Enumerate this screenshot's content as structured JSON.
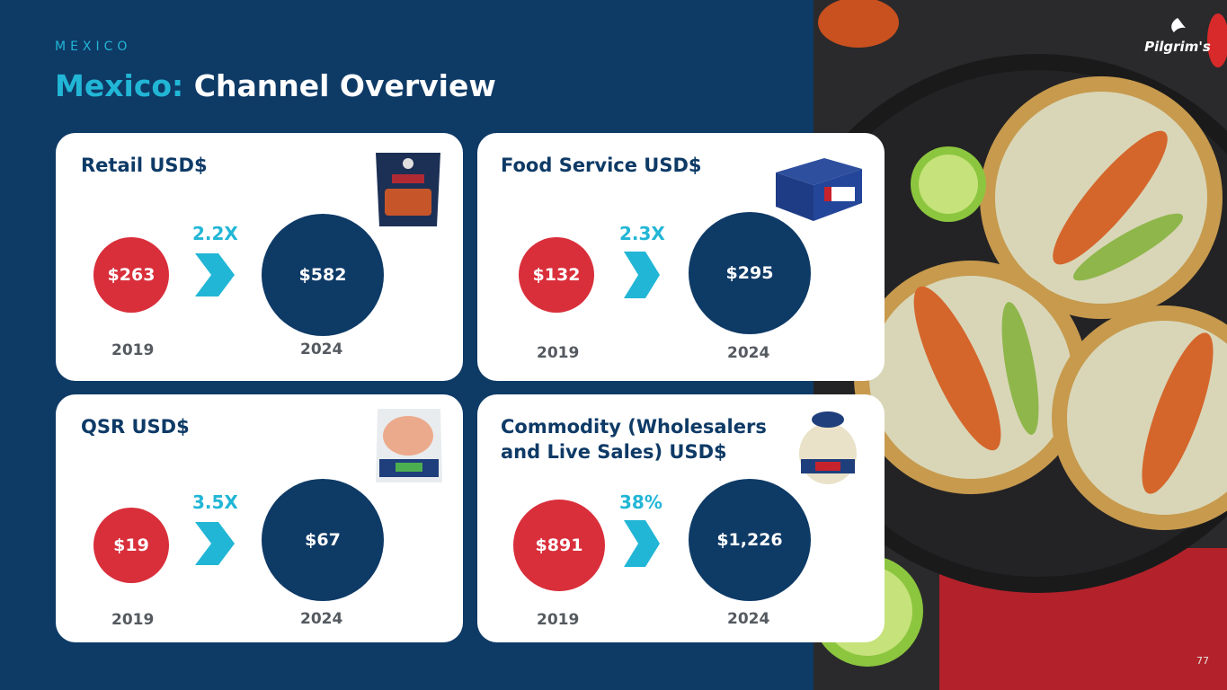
{
  "header": {
    "eyebrow": "MEXICO",
    "title_accent": "Mexico:",
    "title_rest": "Channel Overview"
  },
  "logo": {
    "text": "Pilgrim's"
  },
  "page_number": "77",
  "colors": {
    "navy": "#0e3a66",
    "red": "#d92f3b",
    "teal": "#22b6d6",
    "card": "#ffffff"
  },
  "cards": [
    {
      "title": "Retail USD$",
      "value_2019": "$263",
      "value_2024": "$582",
      "growth": "2.2X",
      "year_start": "2019",
      "year_end": "2024",
      "product_icon": "frozen-wings-bag-icon"
    },
    {
      "title": "Food Service USD$",
      "value_2019": "$132",
      "value_2024": "$295",
      "growth": "2.3X",
      "year_start": "2019",
      "year_end": "2024",
      "product_icon": "food-service-box-icon"
    },
    {
      "title": "QSR USD$",
      "value_2019": "$19",
      "value_2024": "$67",
      "growth": "3.5X",
      "year_start": "2019",
      "year_end": "2024",
      "product_icon": "raw-chicken-bag-icon"
    },
    {
      "title_line1": "Commodity (Wholesalers",
      "title_line2": "and Live Sales) USD$",
      "value_2019": "$891",
      "value_2024": "$1,226",
      "growth": "38%",
      "year_start": "2019",
      "year_end": "2024",
      "product_icon": "whole-chicken-icon"
    }
  ]
}
